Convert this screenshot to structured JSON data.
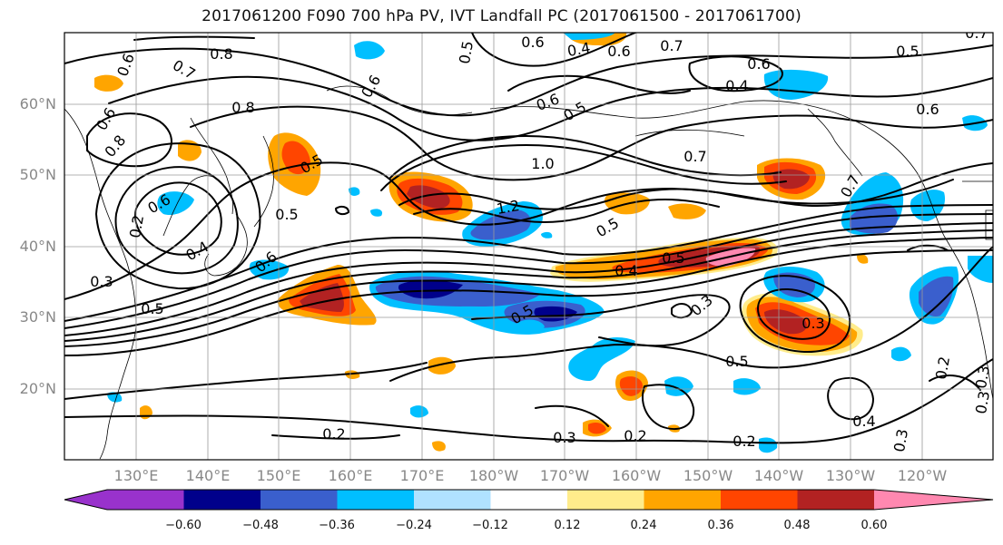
{
  "title": "2017061200 F090 700 hPa PV, IVT Landfall PC (2017061500 - 2017061700)",
  "latitude_labels": [
    "60°N",
    "50°N",
    "40°N",
    "30°N",
    "20°N"
  ],
  "longitude_labels": [
    "130°E",
    "140°E",
    "150°E",
    "160°E",
    "170°E",
    "180°W",
    "170°W",
    "160°W",
    "150°W",
    "140°W",
    "130°W",
    "120°W"
  ],
  "colorbar": {
    "ticks": [
      "−0.60",
      "−0.48",
      "−0.36",
      "−0.24",
      "−0.12",
      "0.12",
      "0.24",
      "0.36",
      "0.48",
      "0.60"
    ],
    "colors": [
      "#9932cc",
      "#00008b",
      "#3a5fcd",
      "#00bfff",
      "#b0e2ff",
      "#ffffff",
      "#ffec8b",
      "#ffa500",
      "#ff4500",
      "#b22222",
      "#ff88b0"
    ],
    "extend": "both"
  },
  "contour_labels": [
    "0.8",
    "0.7",
    "0.6",
    "0.5",
    "0.6",
    "0.4",
    "0.6",
    "0.7",
    "0.6",
    "0.5",
    "0.6",
    "0.4",
    "0.6",
    "0.6",
    "0.8",
    "0.8",
    "0.5",
    "0.6",
    "0.5",
    "0.4",
    "0.7",
    "1.0",
    "0.6",
    "0.5",
    "1.2",
    "0.5",
    "0.7",
    "0.6",
    "0.5",
    "0.4",
    "0.5",
    "0.3",
    "0.5",
    "0.3",
    "0.3",
    "0.5",
    "0.2",
    "0.3",
    "0.2",
    "0.2",
    "0.4",
    "0.2",
    "0.3",
    "0.3",
    "0.2",
    "0.3",
    "0.7"
  ]
}
